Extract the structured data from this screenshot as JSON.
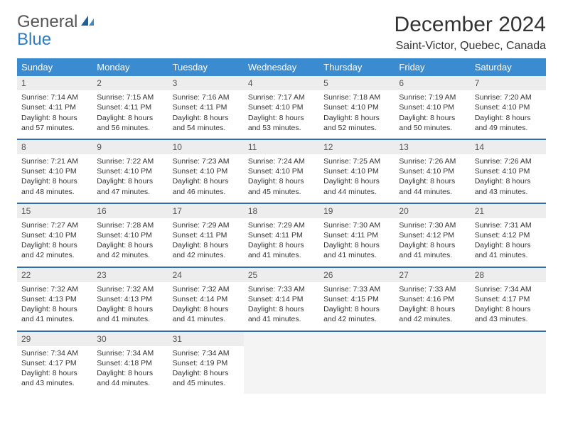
{
  "logo": {
    "word1": "General",
    "word2": "Blue"
  },
  "title": "December 2024",
  "location": "Saint-Victor, Quebec, Canada",
  "header_bg": "#3b8bd0",
  "row_border_color": "#2f6ea8",
  "daynum_bg": "#ededed",
  "empty_bg": "#f4f4f4",
  "day_headers": [
    "Sunday",
    "Monday",
    "Tuesday",
    "Wednesday",
    "Thursday",
    "Friday",
    "Saturday"
  ],
  "weeks": [
    [
      {
        "n": "1",
        "sr": "Sunrise: 7:14 AM",
        "ss": "Sunset: 4:11 PM",
        "d1": "Daylight: 8 hours",
        "d2": "and 57 minutes."
      },
      {
        "n": "2",
        "sr": "Sunrise: 7:15 AM",
        "ss": "Sunset: 4:11 PM",
        "d1": "Daylight: 8 hours",
        "d2": "and 56 minutes."
      },
      {
        "n": "3",
        "sr": "Sunrise: 7:16 AM",
        "ss": "Sunset: 4:11 PM",
        "d1": "Daylight: 8 hours",
        "d2": "and 54 minutes."
      },
      {
        "n": "4",
        "sr": "Sunrise: 7:17 AM",
        "ss": "Sunset: 4:10 PM",
        "d1": "Daylight: 8 hours",
        "d2": "and 53 minutes."
      },
      {
        "n": "5",
        "sr": "Sunrise: 7:18 AM",
        "ss": "Sunset: 4:10 PM",
        "d1": "Daylight: 8 hours",
        "d2": "and 52 minutes."
      },
      {
        "n": "6",
        "sr": "Sunrise: 7:19 AM",
        "ss": "Sunset: 4:10 PM",
        "d1": "Daylight: 8 hours",
        "d2": "and 50 minutes."
      },
      {
        "n": "7",
        "sr": "Sunrise: 7:20 AM",
        "ss": "Sunset: 4:10 PM",
        "d1": "Daylight: 8 hours",
        "d2": "and 49 minutes."
      }
    ],
    [
      {
        "n": "8",
        "sr": "Sunrise: 7:21 AM",
        "ss": "Sunset: 4:10 PM",
        "d1": "Daylight: 8 hours",
        "d2": "and 48 minutes."
      },
      {
        "n": "9",
        "sr": "Sunrise: 7:22 AM",
        "ss": "Sunset: 4:10 PM",
        "d1": "Daylight: 8 hours",
        "d2": "and 47 minutes."
      },
      {
        "n": "10",
        "sr": "Sunrise: 7:23 AM",
        "ss": "Sunset: 4:10 PM",
        "d1": "Daylight: 8 hours",
        "d2": "and 46 minutes."
      },
      {
        "n": "11",
        "sr": "Sunrise: 7:24 AM",
        "ss": "Sunset: 4:10 PM",
        "d1": "Daylight: 8 hours",
        "d2": "and 45 minutes."
      },
      {
        "n": "12",
        "sr": "Sunrise: 7:25 AM",
        "ss": "Sunset: 4:10 PM",
        "d1": "Daylight: 8 hours",
        "d2": "and 44 minutes."
      },
      {
        "n": "13",
        "sr": "Sunrise: 7:26 AM",
        "ss": "Sunset: 4:10 PM",
        "d1": "Daylight: 8 hours",
        "d2": "and 44 minutes."
      },
      {
        "n": "14",
        "sr": "Sunrise: 7:26 AM",
        "ss": "Sunset: 4:10 PM",
        "d1": "Daylight: 8 hours",
        "d2": "and 43 minutes."
      }
    ],
    [
      {
        "n": "15",
        "sr": "Sunrise: 7:27 AM",
        "ss": "Sunset: 4:10 PM",
        "d1": "Daylight: 8 hours",
        "d2": "and 42 minutes."
      },
      {
        "n": "16",
        "sr": "Sunrise: 7:28 AM",
        "ss": "Sunset: 4:10 PM",
        "d1": "Daylight: 8 hours",
        "d2": "and 42 minutes."
      },
      {
        "n": "17",
        "sr": "Sunrise: 7:29 AM",
        "ss": "Sunset: 4:11 PM",
        "d1": "Daylight: 8 hours",
        "d2": "and 42 minutes."
      },
      {
        "n": "18",
        "sr": "Sunrise: 7:29 AM",
        "ss": "Sunset: 4:11 PM",
        "d1": "Daylight: 8 hours",
        "d2": "and 41 minutes."
      },
      {
        "n": "19",
        "sr": "Sunrise: 7:30 AM",
        "ss": "Sunset: 4:11 PM",
        "d1": "Daylight: 8 hours",
        "d2": "and 41 minutes."
      },
      {
        "n": "20",
        "sr": "Sunrise: 7:30 AM",
        "ss": "Sunset: 4:12 PM",
        "d1": "Daylight: 8 hours",
        "d2": "and 41 minutes."
      },
      {
        "n": "21",
        "sr": "Sunrise: 7:31 AM",
        "ss": "Sunset: 4:12 PM",
        "d1": "Daylight: 8 hours",
        "d2": "and 41 minutes."
      }
    ],
    [
      {
        "n": "22",
        "sr": "Sunrise: 7:32 AM",
        "ss": "Sunset: 4:13 PM",
        "d1": "Daylight: 8 hours",
        "d2": "and 41 minutes."
      },
      {
        "n": "23",
        "sr": "Sunrise: 7:32 AM",
        "ss": "Sunset: 4:13 PM",
        "d1": "Daylight: 8 hours",
        "d2": "and 41 minutes."
      },
      {
        "n": "24",
        "sr": "Sunrise: 7:32 AM",
        "ss": "Sunset: 4:14 PM",
        "d1": "Daylight: 8 hours",
        "d2": "and 41 minutes."
      },
      {
        "n": "25",
        "sr": "Sunrise: 7:33 AM",
        "ss": "Sunset: 4:14 PM",
        "d1": "Daylight: 8 hours",
        "d2": "and 41 minutes."
      },
      {
        "n": "26",
        "sr": "Sunrise: 7:33 AM",
        "ss": "Sunset: 4:15 PM",
        "d1": "Daylight: 8 hours",
        "d2": "and 42 minutes."
      },
      {
        "n": "27",
        "sr": "Sunrise: 7:33 AM",
        "ss": "Sunset: 4:16 PM",
        "d1": "Daylight: 8 hours",
        "d2": "and 42 minutes."
      },
      {
        "n": "28",
        "sr": "Sunrise: 7:34 AM",
        "ss": "Sunset: 4:17 PM",
        "d1": "Daylight: 8 hours",
        "d2": "and 43 minutes."
      }
    ],
    [
      {
        "n": "29",
        "sr": "Sunrise: 7:34 AM",
        "ss": "Sunset: 4:17 PM",
        "d1": "Daylight: 8 hours",
        "d2": "and 43 minutes."
      },
      {
        "n": "30",
        "sr": "Sunrise: 7:34 AM",
        "ss": "Sunset: 4:18 PM",
        "d1": "Daylight: 8 hours",
        "d2": "and 44 minutes."
      },
      {
        "n": "31",
        "sr": "Sunrise: 7:34 AM",
        "ss": "Sunset: 4:19 PM",
        "d1": "Daylight: 8 hours",
        "d2": "and 45 minutes."
      },
      {
        "empty": true
      },
      {
        "empty": true
      },
      {
        "empty": true
      },
      {
        "empty": true
      }
    ]
  ]
}
